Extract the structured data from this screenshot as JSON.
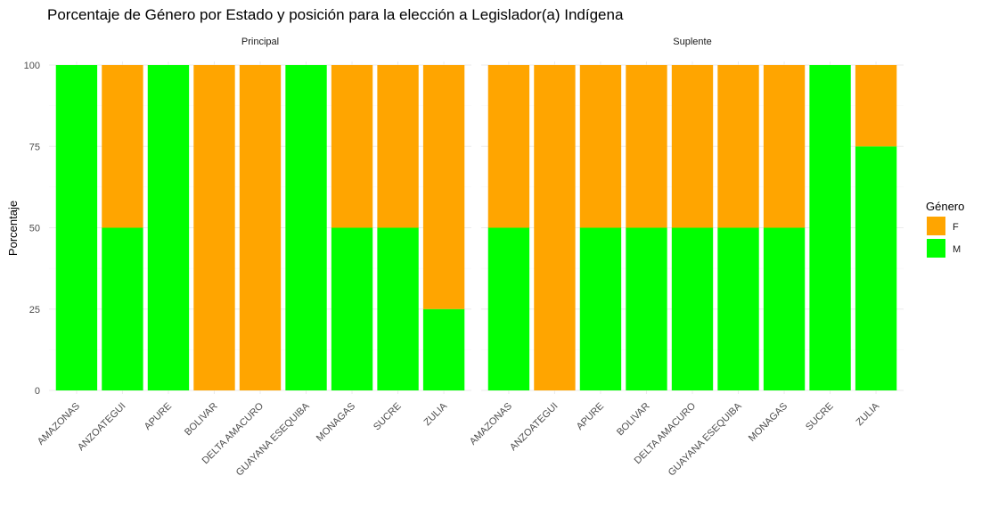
{
  "chart_data": {
    "type": "bar",
    "stacked": true,
    "title": "Porcentaje de Género por Estado y posición para la elección a Legislador(a) Indígena",
    "xlabel": "",
    "ylabel": "Porcentaje",
    "ylim": [
      0,
      100
    ],
    "yticks": [
      0,
      25,
      50,
      75,
      100
    ],
    "grid": true,
    "legend": {
      "title": "Género",
      "position": "right",
      "entries": [
        {
          "label": "F",
          "color": "#FFA500"
        },
        {
          "label": "M",
          "color": "#00FF00"
        }
      ]
    },
    "panels": [
      {
        "label": "Principal",
        "categories": [
          "AMAZONAS",
          "ANZOATEGUI",
          "APURE",
          "BOLIVAR",
          "DELTA AMACURO",
          "GUAYANA ESEQUIBA",
          "MONAGAS",
          "SUCRE",
          "ZULIA"
        ],
        "series": [
          {
            "name": "M",
            "values": [
              100,
              50,
              100,
              0,
              0,
              100,
              50,
              50,
              25
            ]
          },
          {
            "name": "F",
            "values": [
              0,
              50,
              0,
              100,
              100,
              0,
              50,
              50,
              75
            ]
          }
        ]
      },
      {
        "label": "Suplente",
        "categories": [
          "AMAZONAS",
          "ANZOATEGUI",
          "APURE",
          "BOLIVAR",
          "DELTA AMACURO",
          "GUAYANA ESEQUIBA",
          "MONAGAS",
          "SUCRE",
          "ZULIA"
        ],
        "series": [
          {
            "name": "M",
            "values": [
              50,
              0,
              50,
              50,
              50,
              50,
              50,
              100,
              75
            ]
          },
          {
            "name": "F",
            "values": [
              50,
              100,
              50,
              50,
              50,
              50,
              50,
              0,
              25
            ]
          }
        ]
      }
    ]
  }
}
